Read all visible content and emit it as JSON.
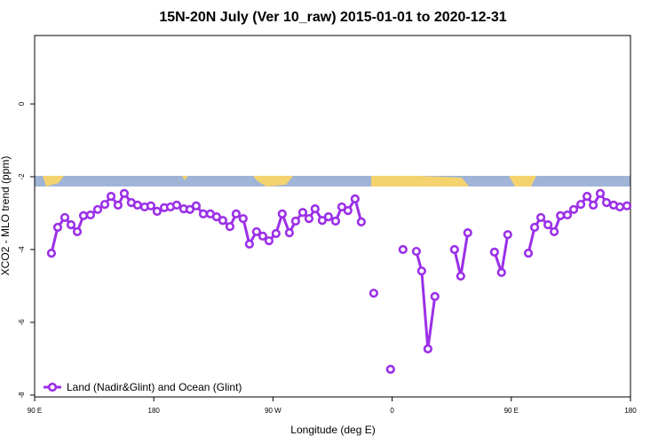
{
  "chart_data": {
    "type": "line",
    "title": "15N-20N July (Ver 10_raw)   2015-01-01 to 2020-12-31",
    "x_label": "Longitude (deg E)",
    "y_label": "XCO2 - MLO trend (ppm)",
    "xlim": [
      90,
      540
    ],
    "ylim": [
      -8.05,
      1.88
    ],
    "xticks": [
      {
        "value": 90,
        "label": "90 E"
      },
      180,
      {
        "value": 270,
        "label": "90 W"
      },
      {
        "value": 360,
        "label": "0"
      },
      {
        "value": 450,
        "label": "90 E"
      },
      {
        "value": 540,
        "label": "180"
      }
    ],
    "yticks": [
      0,
      -2,
      -4,
      -6,
      -8
    ],
    "legend": "bottom-left",
    "x": [
      102.7,
      107.4,
      112.8,
      117.5,
      122.2,
      126.9,
      132.2,
      137.6,
      143.0,
      147.7,
      153.0,
      157.7,
      163.0,
      167.7,
      173.1,
      177.8,
      182.5,
      187.9,
      192.6,
      197.3,
      202.6,
      207.3,
      212.0,
      217.4,
      222.7,
      227.4,
      232.1,
      237.5,
      242.2,
      247.5,
      252.2,
      257.6,
      262.3,
      267.0,
      272.3,
      277.0,
      282.4,
      287.1,
      292.5,
      297.2,
      301.8,
      307.2,
      311.9,
      317.3,
      322.0,
      326.6,
      332.0,
      336.7,
      null,
      346.1,
      null,
      358.8,
      null,
      368.2,
      null,
      378.3,
      382.3,
      387.0,
      392.3,
      null,
      407.1,
      411.8,
      417.1,
      null,
      437.3,
      442.6,
      447.3,
      null,
      462.9,
      467.6,
      472.3,
      477.7,
      482.4,
      487.1,
      492.4,
      497.1,
      502.5,
      507.2,
      511.9,
      517.2,
      521.9,
      527.3,
      532.0,
      537.3
    ],
    "series": [
      {
        "name": "Land (Nadir&Glint) and Ocean (Glint)",
        "color": "#9b30e8",
        "values": [
          -4.1,
          -3.39,
          -3.12,
          -3.32,
          -3.51,
          -3.07,
          -3.05,
          -2.9,
          -2.76,
          -2.54,
          -2.78,
          -2.46,
          -2.71,
          -2.78,
          -2.83,
          -2.8,
          -2.95,
          -2.85,
          -2.83,
          -2.78,
          -2.88,
          -2.9,
          -2.8,
          -3.02,
          -3.02,
          -3.1,
          -3.2,
          -3.37,
          -3.02,
          -3.15,
          -3.85,
          -3.51,
          -3.63,
          -3.76,
          -3.56,
          -3.02,
          -3.54,
          -3.22,
          -2.98,
          -3.15,
          -2.88,
          -3.2,
          -3.1,
          -3.22,
          -2.83,
          -2.93,
          -2.61,
          -3.24,
          null,
          -5.2,
          null,
          -7.29,
          null,
          -4.0,
          null,
          -4.05,
          -4.59,
          -6.73,
          -5.29,
          null,
          -4.0,
          -4.73,
          -3.54,
          null,
          -4.07,
          -4.63,
          -3.59,
          null,
          -4.1,
          -3.39,
          -3.12,
          -3.32,
          -3.51,
          -3.07,
          -3.05,
          -2.9,
          -2.76,
          -2.54,
          -2.78,
          -2.46,
          -2.71,
          -2.78,
          -2.83,
          -2.8
        ]
      }
    ]
  }
}
